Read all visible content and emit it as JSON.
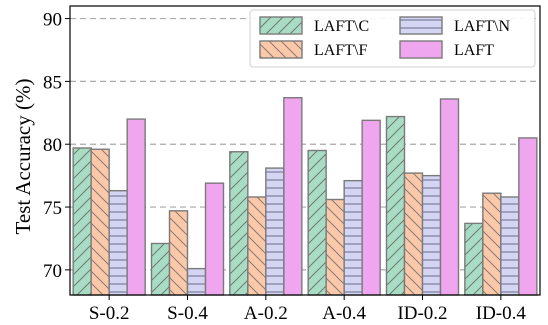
{
  "chart_data": {
    "type": "bar",
    "ylabel": "Test Accuracy (%)",
    "xlabel": "",
    "ylim": [
      68,
      91
    ],
    "yticks": [
      70,
      75,
      80,
      85,
      90
    ],
    "grid": "horizontal dashed",
    "legend_position": "top-right",
    "categories": [
      "S-0.2",
      "S-0.4",
      "A-0.2",
      "A-0.4",
      "ID-0.2",
      "ID-0.4"
    ],
    "series": [
      {
        "name": "LAFT\\C",
        "color": "#a8dcc4",
        "hatch": "forward-diagonal",
        "values": [
          79.7,
          72.1,
          79.4,
          79.5,
          82.2,
          73.7
        ]
      },
      {
        "name": "LAFT\\F",
        "color": "#fcc8aa",
        "hatch": "back-diagonal",
        "values": [
          79.6,
          74.7,
          75.8,
          75.6,
          77.7,
          76.1
        ]
      },
      {
        "name": "LAFT\\N",
        "color": "#d3d5f3",
        "hatch": "horizontal",
        "values": [
          76.3,
          70.1,
          78.1,
          77.1,
          77.5,
          75.8
        ]
      },
      {
        "name": "LAFT",
        "color": "#efa6ef",
        "hatch": "none",
        "values": [
          82.0,
          76.9,
          83.7,
          81.9,
          83.6,
          80.5
        ]
      }
    ]
  }
}
